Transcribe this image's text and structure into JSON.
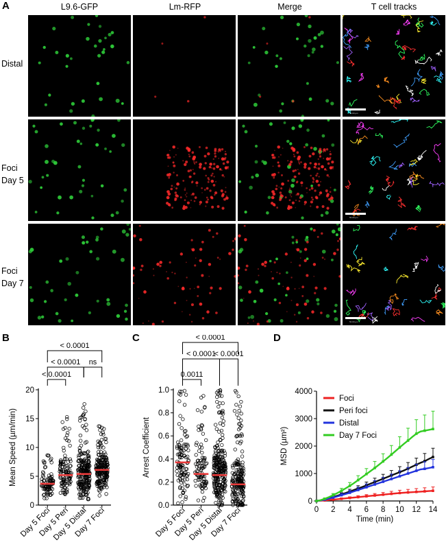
{
  "panel_a": {
    "letter": "A",
    "columns": [
      "L9.6-GFP",
      "Lm-RFP",
      "Merge",
      "T cell tracks"
    ],
    "rows": [
      {
        "lines": [
          "Distal"
        ]
      },
      {
        "lines": [
          "Foci",
          "Day 5"
        ]
      },
      {
        "lines": [
          "Foci",
          "Day 7"
        ]
      }
    ],
    "scale_label": "50.00 µm",
    "colors": {
      "gfp": "#2fd03a",
      "rfp": "#ff2a2a"
    }
  },
  "chart_data": [
    {
      "letter": "B",
      "type": "scatter",
      "ylabel": "Mean Speed (µm/min)",
      "ylim": [
        0,
        20
      ],
      "yticks": [
        "0",
        "5",
        "10",
        "15",
        "20"
      ],
      "categories": [
        "Day 5 Foci",
        "Day 5 Peri",
        "Day 5 Distal",
        "Day 7 Foci"
      ],
      "medians": [
        3.7,
        5.2,
        5.4,
        6.1
      ],
      "spread": [
        [
          1.0,
          9.0
        ],
        [
          1.5,
          15.8
        ],
        [
          1.0,
          17.8
        ],
        [
          1.5,
          13.8
        ]
      ],
      "point_counts": [
        90,
        110,
        230,
        210
      ],
      "median_color": "#e83a3a",
      "brackets": [
        {
          "from": 0,
          "to": 1,
          "label": "< 0.0001",
          "level": 0
        },
        {
          "from": 0,
          "to": 2,
          "label": "< 0.0001",
          "level": 1
        },
        {
          "from": 2,
          "to": 3,
          "label": "ns",
          "level": 1
        },
        {
          "from": 0,
          "to": 3,
          "label": "< 0.0001",
          "level": 2
        }
      ]
    },
    {
      "letter": "C",
      "type": "scatter",
      "ylabel": "Arrest Coefficient",
      "ylim": [
        0,
        1
      ],
      "yticks": [
        "0.0",
        "0.2",
        "0.4",
        "0.6",
        "0.8",
        "1.0"
      ],
      "categories": [
        "Day 5 Foci",
        "Day 5 Peri",
        "Day 5 Distal",
        "Day 7 Foci"
      ],
      "medians": [
        0.37,
        0.27,
        0.26,
        0.18
      ],
      "spread": [
        [
          0.0,
          1.0
        ],
        [
          0.0,
          1.0
        ],
        [
          0.0,
          1.0
        ],
        [
          0.0,
          1.0
        ]
      ],
      "point_counts": [
        110,
        90,
        260,
        200
      ],
      "median_color": "#e83a3a",
      "brackets": [
        {
          "from": 0,
          "to": 1,
          "label": "0.0011",
          "level": 0
        },
        {
          "from": 0,
          "to": 2,
          "label": "< 0.0001",
          "level": 1
        },
        {
          "from": 2,
          "to": 3,
          "label": "< 0.0001",
          "level": 1
        },
        {
          "from": 0,
          "to": 3,
          "label": "< 0.0001",
          "level": 2
        }
      ]
    },
    {
      "letter": "D",
      "type": "line",
      "xlabel": "Time (min)",
      "ylabel": "MSD (µm²)",
      "xlim": [
        0,
        14
      ],
      "ylim": [
        0,
        4000
      ],
      "xticks": [
        "0",
        "2",
        "4",
        "6",
        "8",
        "10",
        "12",
        "14"
      ],
      "yticks": [
        "0",
        "1000",
        "2000",
        "3000",
        "4000"
      ],
      "x": [
        0,
        0.5,
        1,
        1.5,
        2,
        2.5,
        3,
        3.5,
        4,
        4.5,
        5,
        5.5,
        6,
        6.5,
        7,
        7.5,
        8,
        8.5,
        9,
        9.5,
        10,
        10.5,
        11,
        11.5,
        12,
        12.5,
        13,
        13.5,
        14
      ],
      "series": [
        {
          "name": "Foci",
          "color": "#ee2222",
          "values": [
            0,
            10,
            20,
            35,
            50,
            65,
            80,
            95,
            110,
            125,
            140,
            155,
            170,
            185,
            200,
            215,
            230,
            245,
            260,
            275,
            290,
            300,
            310,
            320,
            330,
            340,
            350,
            360,
            370
          ],
          "err": [
            0,
            5,
            10,
            15,
            20,
            25,
            30,
            35,
            40,
            45,
            50,
            55,
            60,
            65,
            70,
            75,
            80,
            85,
            90,
            95,
            100,
            105,
            110,
            115,
            120,
            125,
            130,
            135,
            140
          ]
        },
        {
          "name": "Peri foci",
          "color": "#111111",
          "values": [
            0,
            25,
            60,
            100,
            145,
            190,
            240,
            290,
            345,
            400,
            455,
            510,
            570,
            630,
            690,
            750,
            810,
            870,
            930,
            990,
            1050,
            1110,
            1180,
            1250,
            1320,
            1390,
            1450,
            1530,
            1600
          ],
          "err": [
            0,
            10,
            20,
            30,
            40,
            50,
            60,
            70,
            80,
            90,
            100,
            110,
            120,
            130,
            140,
            150,
            160,
            170,
            180,
            190,
            200,
            210,
            220,
            230,
            240,
            260,
            280,
            300,
            320
          ]
        },
        {
          "name": "Distal",
          "color": "#2233dd",
          "values": [
            0,
            20,
            50,
            85,
            125,
            165,
            210,
            255,
            300,
            350,
            400,
            450,
            500,
            550,
            600,
            650,
            700,
            750,
            800,
            850,
            900,
            950,
            1000,
            1050,
            1100,
            1150,
            1170,
            1200,
            1230
          ],
          "err": [
            0,
            10,
            20,
            30,
            40,
            50,
            60,
            70,
            80,
            90,
            100,
            110,
            120,
            130,
            140,
            150,
            160,
            170,
            180,
            190,
            200,
            210,
            220,
            230,
            240,
            250,
            260,
            270,
            280
          ]
        },
        {
          "name": "Day 7 Foci",
          "color": "#33cc22",
          "values": [
            0,
            30,
            80,
            140,
            210,
            290,
            370,
            460,
            550,
            650,
            760,
            870,
            980,
            1090,
            1200,
            1320,
            1440,
            1560,
            1690,
            1820,
            1950,
            2080,
            2200,
            2330,
            2450,
            2530,
            2560,
            2590,
            2620
          ],
          "err": [
            0,
            15,
            30,
            45,
            60,
            75,
            90,
            105,
            120,
            140,
            160,
            180,
            200,
            220,
            240,
            260,
            280,
            300,
            330,
            360,
            390,
            420,
            450,
            480,
            510,
            540,
            570,
            610,
            650
          ]
        }
      ]
    }
  ]
}
